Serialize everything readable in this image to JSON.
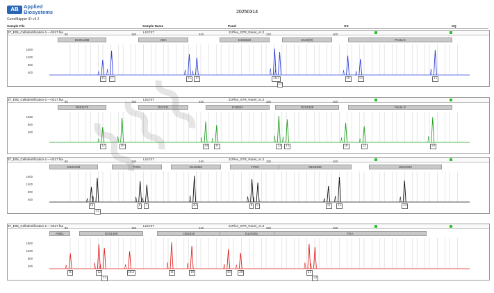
{
  "brand": {
    "line1": "Applied",
    "line2": "Biosystems",
    "mark": "AB"
  },
  "version": "GeneMapper ID v3.2",
  "date": "20250314",
  "header": {
    "sample_file": "Sample File",
    "sample_name": "Sample Name",
    "panel": "Panel",
    "os": "OS",
    "sq": "SQ"
  },
  "colors": {
    "blue": "#2b3fd6",
    "green": "#1ea01e",
    "black": "#111111",
    "red": "#e0211f",
    "flag": "#29c229"
  },
  "axis_ticks": [
    "80",
    "160",
    "240",
    "320",
    "400"
  ],
  "y_ticks_a": [
    "1600",
    "1200",
    "800",
    "400"
  ],
  "y_ticks_b": [
    "1600",
    "800",
    "400"
  ],
  "panels": [
    {
      "file": "37_E05_CellIdentification-1----0317.fsa",
      "sample": "LS1747",
      "panel_name": "21Plex_STR_Panel_v1.2",
      "color": "blue",
      "markers": [
        "D19S1358",
        "vWA",
        "D1S5820",
        "D13S(R)",
        "Penta E"
      ],
      "alleles": [
        {
          "label": "15",
          "x": 0.127
        },
        {
          "label": "17",
          "x": 0.148
        },
        {
          "label": "15",
          "x": 0.333
        },
        {
          "label": "17",
          "x": 0.351
        },
        {
          "label": "10.3",
          "x": 0.536
        },
        {
          "label": "11",
          "x": 0.548,
          "row": 2
        },
        {
          "label": "10",
          "x": 0.71
        },
        {
          "label": "13",
          "x": 0.74
        },
        {
          "label": "15",
          "x": 0.918
        }
      ]
    },
    {
      "file": "37_E05_CellIdentification-1----0317.fsa",
      "sample": "LS1747",
      "panel_name": "21Plex_STR_Panel_v1.2",
      "color": "green",
      "markers": [
        "D8S1179",
        "D21S11",
        "D18S51",
        "D2S1338",
        "Penta D"
      ],
      "alleles": [
        {
          "label": "12",
          "x": 0.127
        },
        {
          "label": "16",
          "x": 0.173
        },
        {
          "label": "29",
          "x": 0.372
        },
        {
          "label": "31",
          "x": 0.398
        },
        {
          "label": "13",
          "x": 0.546
        },
        {
          "label": "13",
          "x": 0.566
        },
        {
          "label": "18",
          "x": 0.705
        },
        {
          "label": "22",
          "x": 0.749
        },
        {
          "label": "10",
          "x": 0.912
        }
      ]
    },
    {
      "file": "37_E05_CellIdentification-1----0317.fsa",
      "sample": "LS1747",
      "panel_name": "21Plex_STR_Panel_v1.2",
      "color": "black",
      "markers": [
        "D19S433",
        "TH01",
        "D12S391",
        "TPOX",
        "D16S539",
        "D6S1043"
      ],
      "alleles": [
        {
          "label": "14",
          "x": 0.1
        },
        {
          "label": "15",
          "x": 0.114,
          "row": 2
        },
        {
          "label": "6",
          "x": 0.216
        },
        {
          "label": "7",
          "x": 0.232
        },
        {
          "label": "20",
          "x": 0.345
        },
        {
          "label": "8",
          "x": 0.482
        },
        {
          "label": "9",
          "x": 0.496
        },
        {
          "label": "11",
          "x": 0.664
        },
        {
          "label": "13",
          "x": 0.69
        },
        {
          "label": "14",
          "x": 0.845
        }
      ]
    },
    {
      "file": "37_E05_CellIdentification-1----0317.fsa",
      "sample": "LS1747",
      "panel_name": "21Plex_STR_Panel_v1.2",
      "color": "red",
      "markers": [
        "AMEL",
        "D3S1358",
        "D5S818",
        "D12S391",
        "FGA"
      ],
      "alleles": [
        {
          "label": "X",
          "x": 0.05
        },
        {
          "label": "12",
          "x": 0.118
        },
        {
          "label": "13",
          "x": 0.131,
          "row": 2
        },
        {
          "label": "18.3",
          "x": 0.191
        },
        {
          "label": "11",
          "x": 0.291
        },
        {
          "label": "16",
          "x": 0.339
        },
        {
          "label": "16",
          "x": 0.426
        },
        {
          "label": "20",
          "x": 0.455
        },
        {
          "label": "21",
          "x": 0.618
        },
        {
          "label": "22",
          "x": 0.632,
          "row": 2
        }
      ]
    }
  ]
}
